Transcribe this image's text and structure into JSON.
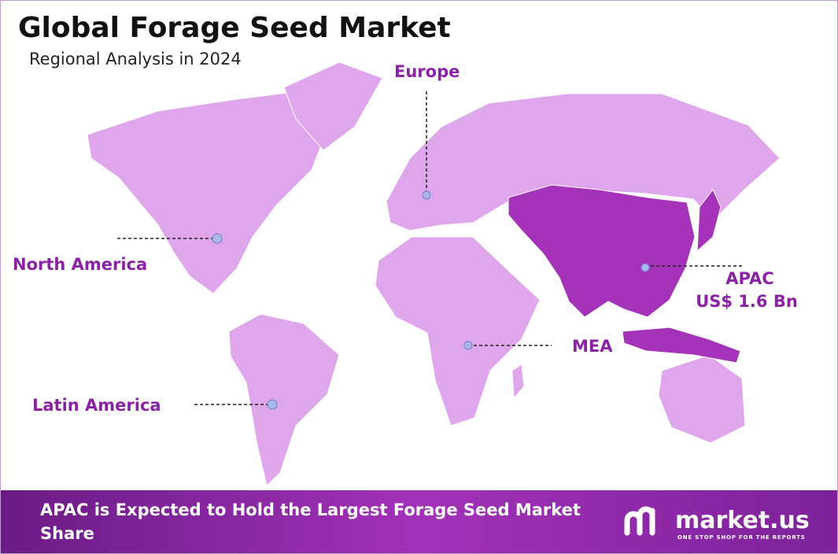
{
  "header": {
    "title": "Global Forage Seed Market",
    "subtitle": "Regional Analysis in 2024"
  },
  "regions": [
    {
      "name": "Europe"
    },
    {
      "name": "North America"
    },
    {
      "name": "Latin America"
    },
    {
      "name": "MEA"
    },
    {
      "name": "APAC",
      "value": "US$ 1.6 Bn"
    }
  ],
  "footer": {
    "text": "APAC is Expected to Hold the Largest Forage Seed Market Share",
    "brand": "market.us",
    "tagline": "ONE STOP SHOP FOR THE REPORTS"
  }
}
